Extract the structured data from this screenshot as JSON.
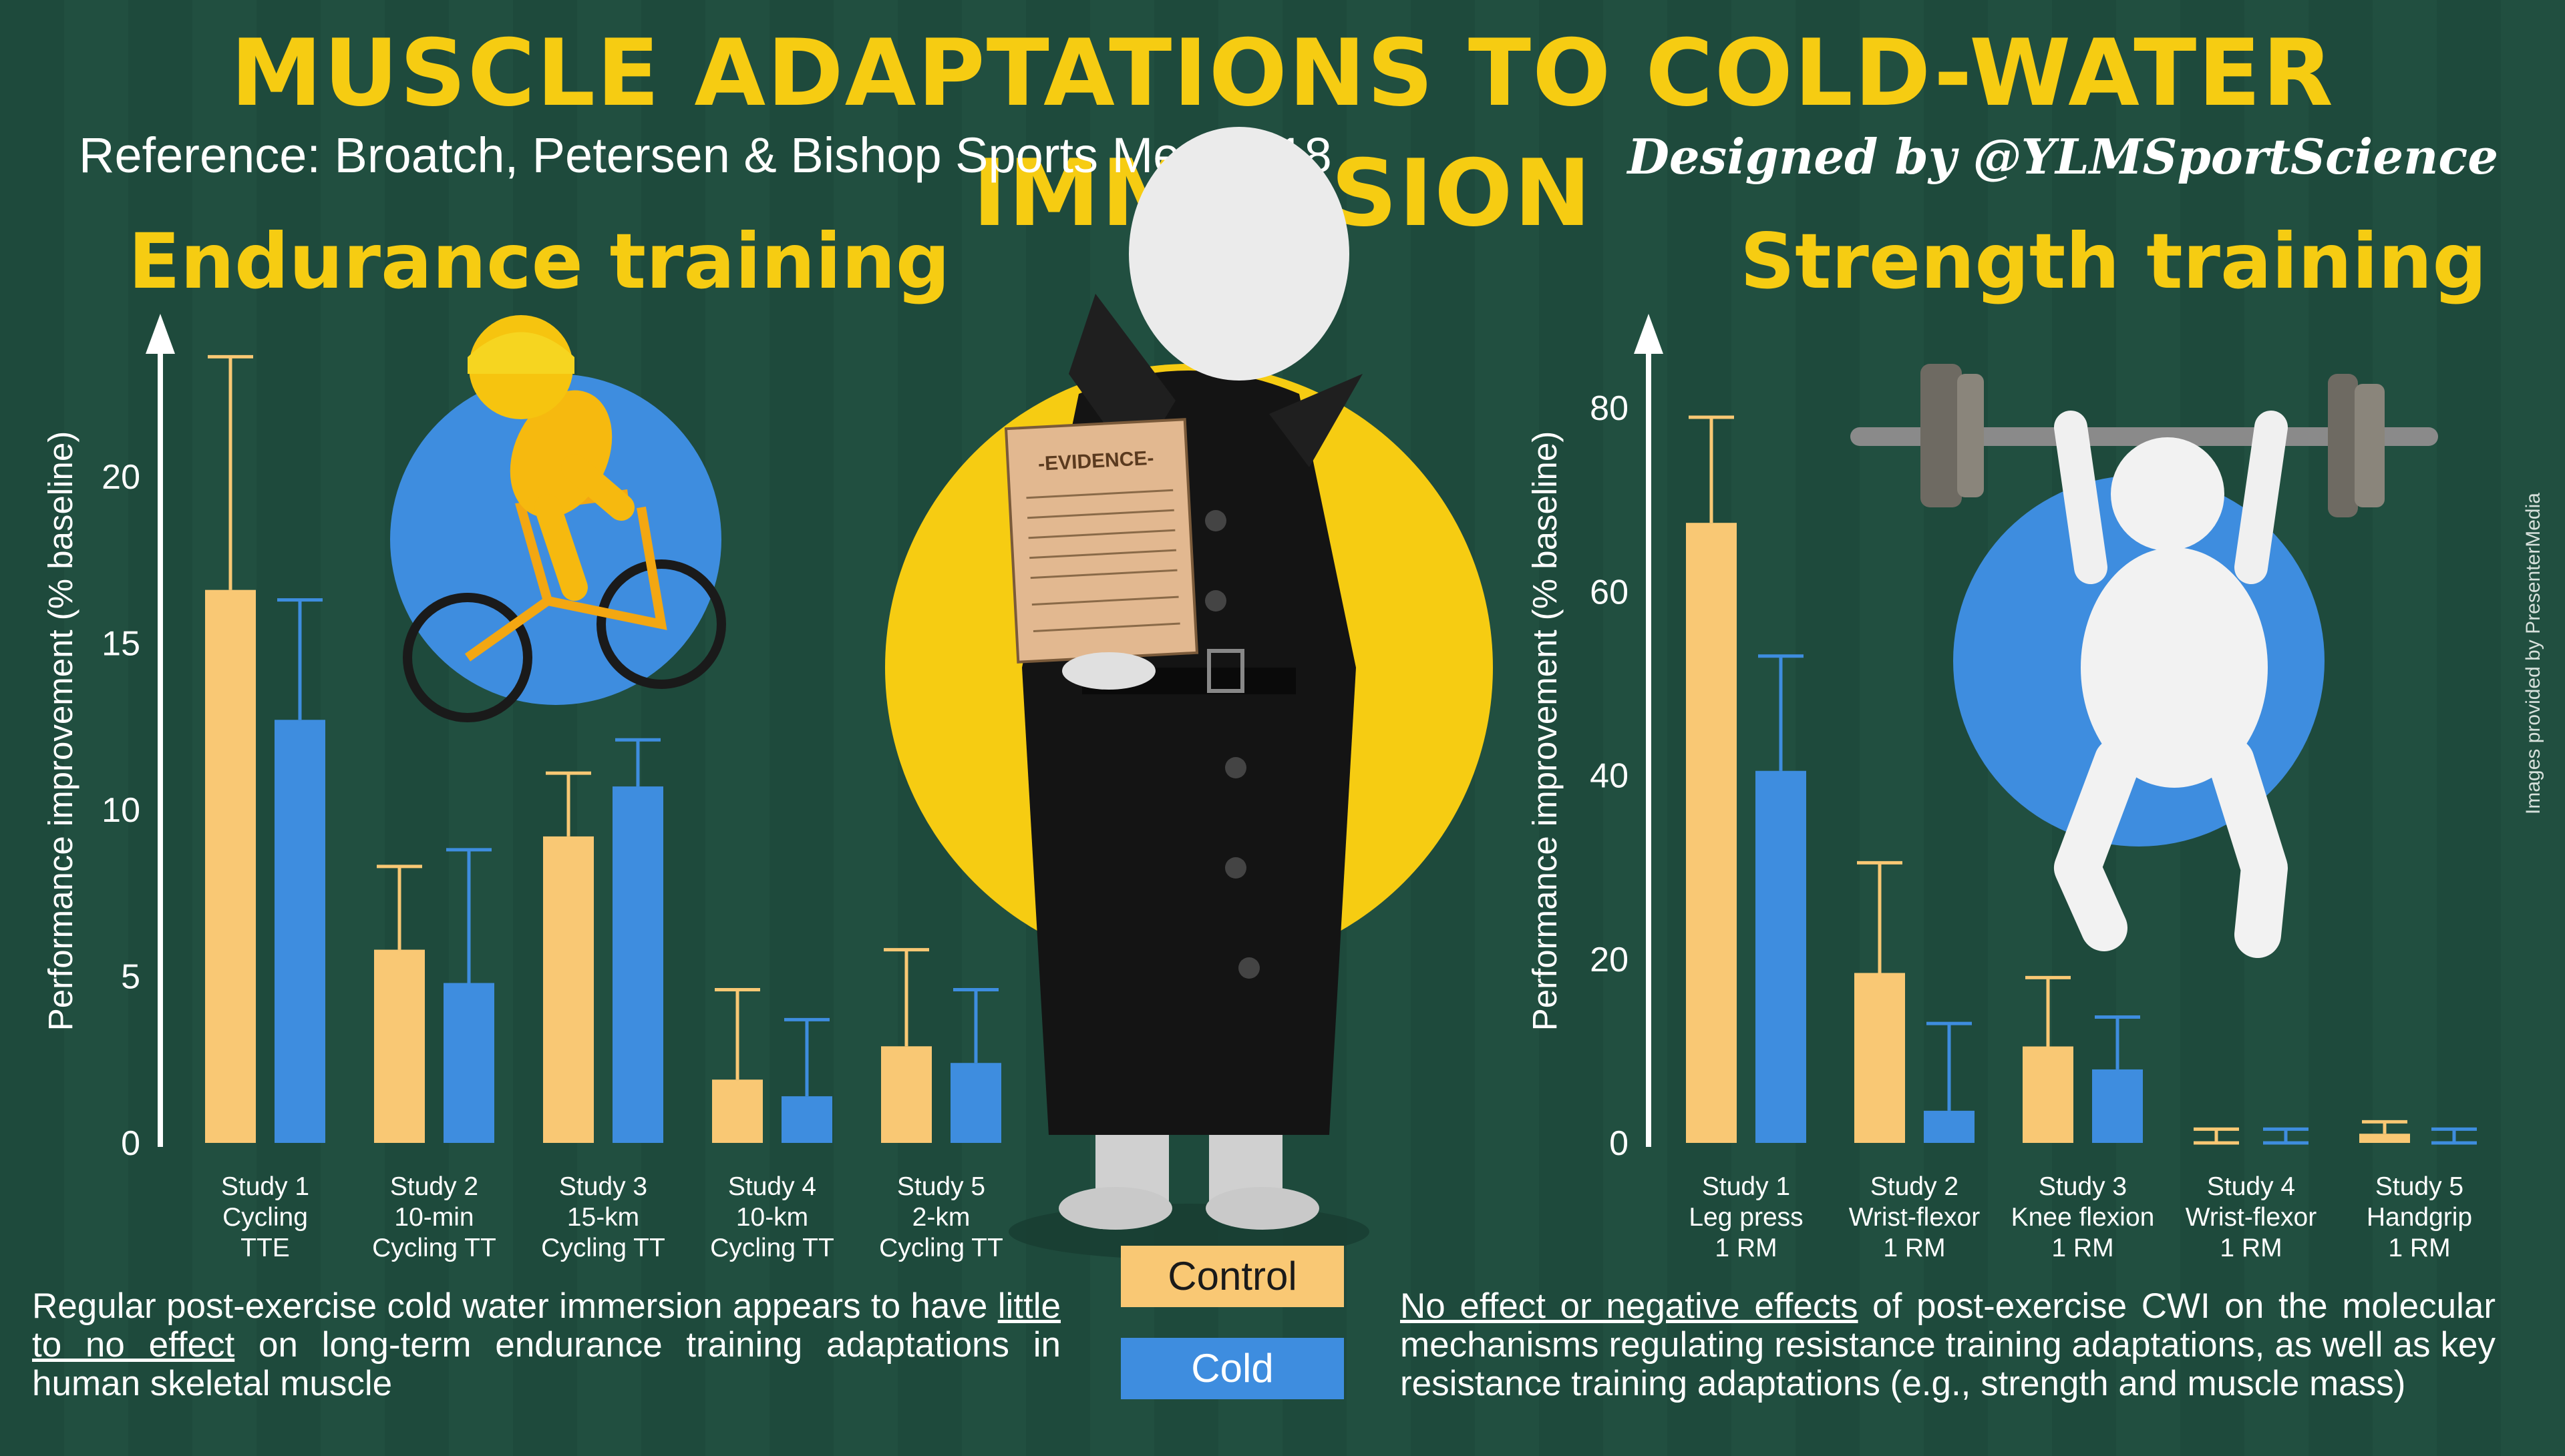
{
  "title": "MUSCLE ADAPTATIONS TO COLD-WATER IMMERSION",
  "reference": "Reference: Broatch, Petersen & Bishop  Sports Med 2018",
  "designer": "Designed by @YLMSportScience",
  "credit": "Images provided by PresenterMedia",
  "endurance_title": "Endurance training",
  "strength_title": "Strength training",
  "legend": {
    "control": "Control",
    "cold": "Cold"
  },
  "colors": {
    "control": "#f9c874",
    "cold": "#3e8ddf",
    "title": "#f6cc12",
    "background": "#1e4a3c"
  },
  "endurance_note": {
    "part1": "Regular post-exercise cold water immersion appears to have ",
    "emphasis": "little to no effect",
    "part2": " on long-term endurance training adaptations in human skeletal muscle"
  },
  "strength_note": {
    "emphasis": "No effect or negative effects",
    "part2": " of post-exercise CWI on the molecular mechanisms regulating resistance training adaptations, as well as key resistance training  adaptations (e.g., strength and muscle mass)"
  },
  "chart_data": [
    {
      "type": "bar",
      "title": "Endurance training",
      "ylabel": "Performance improvement (% baseline)",
      "ylim": [
        0,
        24
      ],
      "yticks": [
        0,
        5,
        10,
        15,
        20
      ],
      "categories": [
        [
          "Study 1",
          "Cycling",
          "TTE"
        ],
        [
          "Study 2",
          "10-min",
          "Cycling TT"
        ],
        [
          "Study 3",
          "15-km",
          "Cycling TT"
        ],
        [
          "Study 4",
          "10-km",
          "Cycling TT"
        ],
        [
          "Study 5",
          "2-km",
          "Cycling TT"
        ]
      ],
      "series": [
        {
          "name": "Control",
          "color": "#f9c874",
          "values": [
            16.6,
            5.8,
            9.2,
            1.9,
            2.9
          ],
          "errors": [
            7.0,
            2.5,
            1.9,
            2.7,
            2.9
          ]
        },
        {
          "name": "Cold",
          "color": "#3e8ddf",
          "values": [
            12.7,
            4.8,
            10.7,
            1.4,
            2.4
          ],
          "errors": [
            3.6,
            4.0,
            1.4,
            2.3,
            2.2
          ]
        }
      ]
    },
    {
      "type": "bar",
      "title": "Strength training",
      "ylabel": "Performance improvement (% baseline)",
      "ylim": [
        0,
        88
      ],
      "yticks": [
        0,
        20,
        40,
        60,
        80
      ],
      "categories": [
        [
          "Study 1",
          "Leg press",
          "1 RM"
        ],
        [
          "Study 2",
          "Wrist-flexor",
          "1 RM"
        ],
        [
          "Study 3",
          "Knee flexion",
          "1 RM"
        ],
        [
          "Study 4",
          "Wrist-flexor",
          "1 RM"
        ],
        [
          "Study 5",
          "Handgrip",
          "1 RM"
        ]
      ],
      "series": [
        {
          "name": "Control",
          "color": "#f9c874",
          "values": [
            67.5,
            18.5,
            10.5,
            0,
            1
          ],
          "errors": [
            11.5,
            12.0,
            7.5,
            1.5,
            1.3
          ]
        },
        {
          "name": "Cold",
          "color": "#3e8ddf",
          "values": [
            40.5,
            3.5,
            8,
            0,
            0
          ],
          "errors": [
            12.5,
            9.5,
            5.7,
            1.5,
            1.5
          ]
        }
      ]
    }
  ]
}
